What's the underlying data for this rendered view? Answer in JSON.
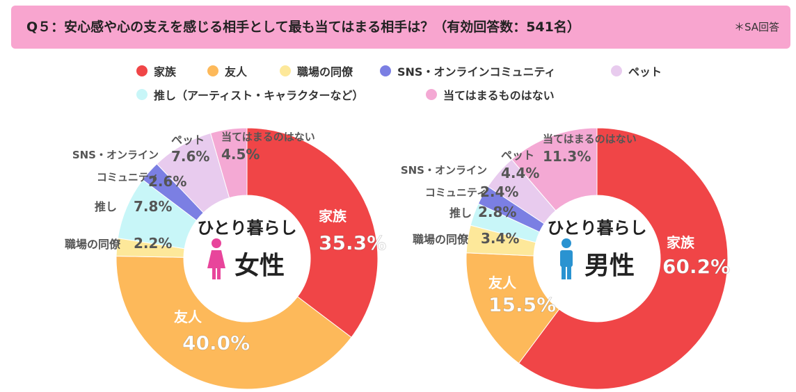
{
  "title": "Q５：安心感や心の支えを感じる相手として最も当てはまる相手は？（有効回答数：541名）",
  "note": "＊SA回答",
  "legend": [
    {
      "label": "家族",
      "color": "#f04547"
    },
    {
      "label": "友人",
      "color": "#fdb95a"
    },
    {
      "label": "職場の同僚",
      "color": "#fde89a"
    },
    {
      "label": "SNS・オンラインコミュニティ",
      "color": "#7b7fe3"
    },
    {
      "label": "ペット",
      "color": "#e8cbee"
    },
    {
      "label": "推し（アーティスト・キャラクターなど）",
      "color": "#c8f6f8"
    },
    {
      "label": "当てはまるものはない",
      "color": "#f4a9d4"
    }
  ],
  "chart_data": [
    {
      "type": "pie",
      "donut": true,
      "center_title": "ひとり暮らし",
      "center_gender": "女性",
      "unit": "%",
      "categories": [
        "家族",
        "友人",
        "職場の同僚",
        "推し",
        "SNS・オンライン コミュニティ",
        "ペット",
        "当てはまるのはない"
      ],
      "values": [
        35.3,
        40.0,
        2.2,
        7.8,
        2.6,
        7.6,
        4.5
      ],
      "labels": [
        "35.3%",
        "40.0%",
        "2.2%",
        "7.8%",
        "2.6%",
        "7.6%",
        "4.5%"
      ]
    },
    {
      "type": "pie",
      "donut": true,
      "center_title": "ひとり暮らし",
      "center_gender": "男性",
      "unit": "%",
      "categories": [
        "家族",
        "友人",
        "職場の同僚",
        "推し",
        "SNS・オンライン コミュニティ",
        "ペット",
        "当てはまるのはない"
      ],
      "values": [
        60.2,
        15.5,
        3.4,
        2.8,
        2.4,
        4.4,
        11.3
      ],
      "labels": [
        "60.2%",
        "15.5%",
        "3.4%",
        "2.8%",
        "2.4%",
        "4.4%",
        "11.3%"
      ]
    }
  ]
}
